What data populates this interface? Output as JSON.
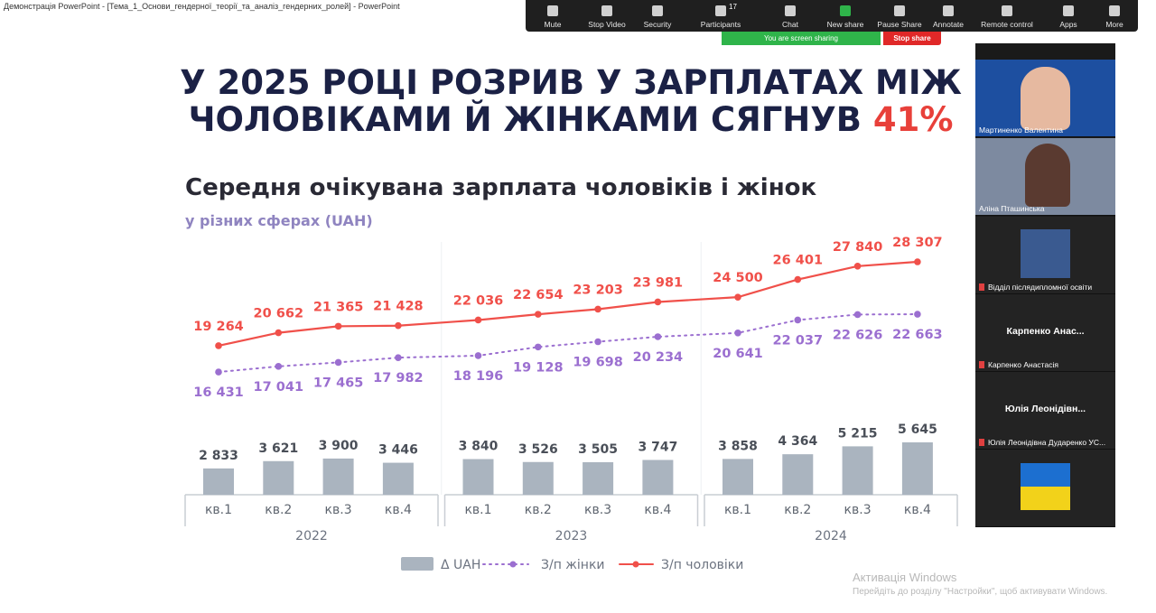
{
  "window_title": "Демонстрація PowerPoint - [Тема_1_Основи_гендерної_теорії_та_аналіз_гендерних_ролей] - PowerPoint",
  "toolbar": {
    "items": [
      "Mute",
      "Stop Video",
      "Security",
      "Participants",
      "Chat",
      "New share",
      "Pause Share",
      "Annotate",
      "Remote control",
      "Apps",
      "More"
    ],
    "participants_count": 17,
    "sharing_notice": "You are screen sharing",
    "stop_share": "Stop share"
  },
  "slide": {
    "title_lines": [
      "У 2025 РОЦІ РОЗРИВ У ЗАРПЛАТАХ МІЖ",
      "ЧОЛОВІКАМИ Й ЖІНКАМИ СЯГНУВ"
    ],
    "title_highlight": "41%"
  },
  "chart_data": {
    "type": "bar-line",
    "title": "Середня очікувана зарплата чоловіків і жінок",
    "subtitle": "у різних сферах (UAH)",
    "categories": [
      "кв.1",
      "кв.2",
      "кв.3",
      "кв.4",
      "кв.1",
      "кв.2",
      "кв.3",
      "кв.4",
      "кв.1",
      "кв.2",
      "кв.3",
      "кв.4"
    ],
    "category_groups": [
      "2022",
      "2023",
      "2024"
    ],
    "series": [
      {
        "name": "Δ UAH",
        "kind": "bar",
        "color": "#aab4bf",
        "values": [
          2833,
          3621,
          3900,
          3446,
          3840,
          3526,
          3505,
          3747,
          3858,
          4364,
          5215,
          5645
        ],
        "value_labels": [
          "2 833",
          "3 621",
          "3 900",
          "3 446",
          "3 840",
          "3 526",
          "3 505",
          "3 747",
          "3 858",
          "4 364",
          "5 215",
          "5 645"
        ]
      },
      {
        "name": "З/п жінки",
        "kind": "dotted-line",
        "color": "#9b6fd0",
        "values": [
          16431,
          17041,
          17465,
          17982,
          18196,
          19128,
          19698,
          20234,
          20641,
          22037,
          22626,
          22663
        ],
        "value_labels": [
          "16 431",
          "17 041",
          "17 465",
          "17 982",
          "18 196",
          "19 128",
          "19 698",
          "20 234",
          "20 641",
          "22 037",
          "22 626",
          "22 663"
        ]
      },
      {
        "name": "З/п чоловіки",
        "kind": "line",
        "color": "#f0504a",
        "values": [
          19264,
          20662,
          21365,
          21428,
          22036,
          22654,
          23203,
          23981,
          24500,
          26401,
          27840,
          28307
        ],
        "value_labels": [
          "19 264",
          "20 662",
          "21 365",
          "21 428",
          "22 036",
          "22 654",
          "23 203",
          "23 981",
          "24 500",
          "26 401",
          "27 840",
          "28 307"
        ]
      }
    ]
  },
  "participants": [
    {
      "name": "Мартиненко Валентина"
    },
    {
      "name": "Аліна Пташинська"
    },
    {
      "name": "Відділ післядипломної освіти"
    },
    {
      "display": "Карпенко  Анас...",
      "name": "Карпенко Анастасія"
    },
    {
      "display": "Юлія Леонідівн...",
      "name": "Юлія Леонідівна Дударенко УС..."
    }
  ],
  "watermark": {
    "title": "Активація Windows",
    "text": "Перейдіть до розділу \"Настройки\", щоб активувати Windows."
  }
}
